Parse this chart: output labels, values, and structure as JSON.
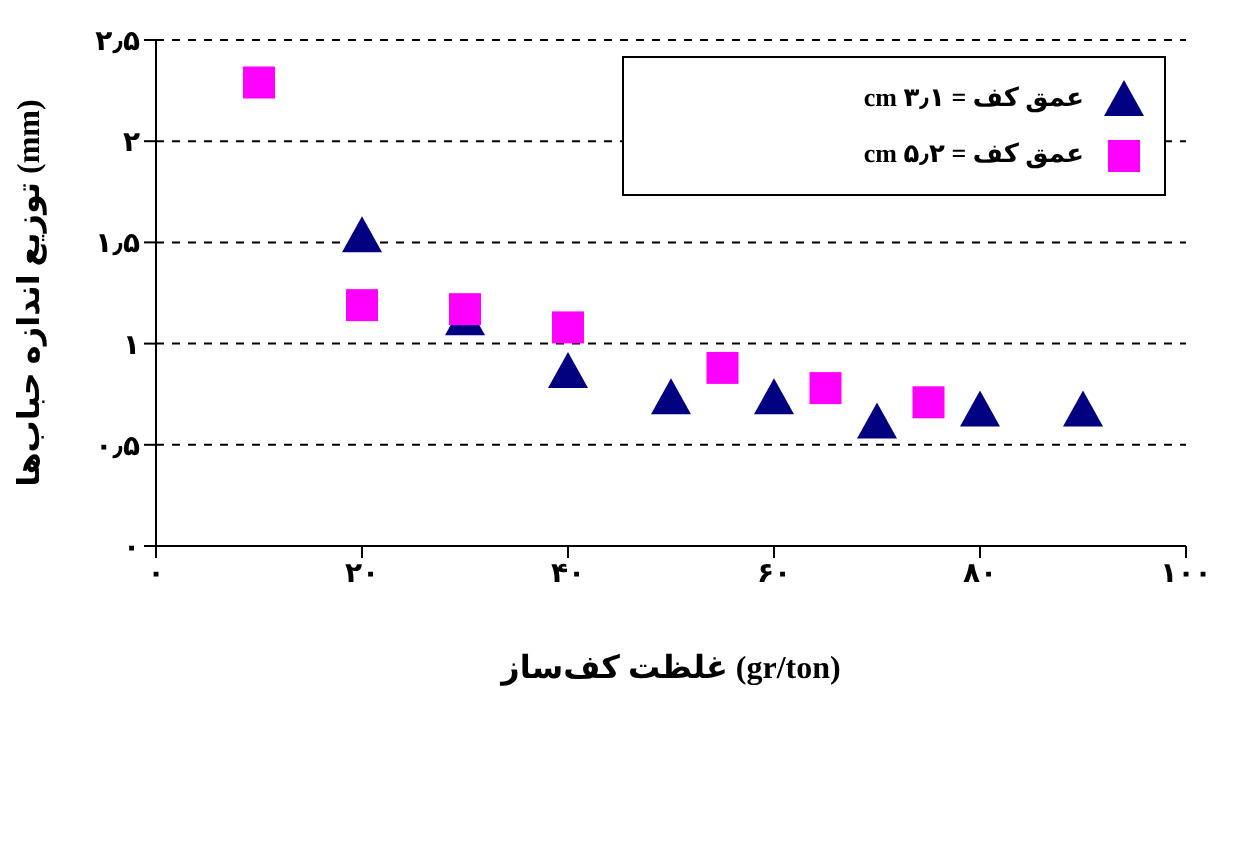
{
  "chart_data": {
    "type": "scatter",
    "xlabel": "غلظت کف‌ساز (gr/ton)",
    "ylabel": "توزیع اندازه حباب‌ها (mm)",
    "xlim": [
      0,
      100
    ],
    "xticks": [
      {
        "value": 0,
        "label": "۰"
      },
      {
        "value": 20,
        "label": "۲۰"
      },
      {
        "value": 40,
        "label": "۴۰"
      },
      {
        "value": 60,
        "label": "۶۰"
      },
      {
        "value": 80,
        "label": "۸۰"
      },
      {
        "value": 100,
        "label": "۱۰۰"
      }
    ],
    "ylim": [
      0,
      2.5
    ],
    "yticks": [
      {
        "value": 0,
        "label": "۰"
      },
      {
        "value": 0.5,
        "label": "۰٫۵"
      },
      {
        "value": 1,
        "label": "۱"
      },
      {
        "value": 1.5,
        "label": "۱٫۵"
      },
      {
        "value": 2,
        "label": "۲"
      },
      {
        "value": 2.5,
        "label": "۲٫۵"
      }
    ],
    "grid": "y",
    "legend": "top right",
    "series": [
      {
        "name": "عمق کف = ۳٫۱ cm",
        "color": "#000080",
        "marker": "triangle",
        "x": [
          20,
          30,
          40,
          50,
          60,
          70,
          80,
          90
        ],
        "values": [
          1.53,
          1.12,
          0.86,
          0.73,
          0.73,
          0.61,
          0.67,
          0.67
        ]
      },
      {
        "name": "عمق کف = ۵٫۲ cm",
        "color": "#ff00ff",
        "marker": "square",
        "x": [
          10,
          20,
          30,
          40,
          55,
          65,
          75
        ],
        "values": [
          2.29,
          1.19,
          1.17,
          1.08,
          0.88,
          0.78,
          0.71
        ]
      }
    ]
  }
}
